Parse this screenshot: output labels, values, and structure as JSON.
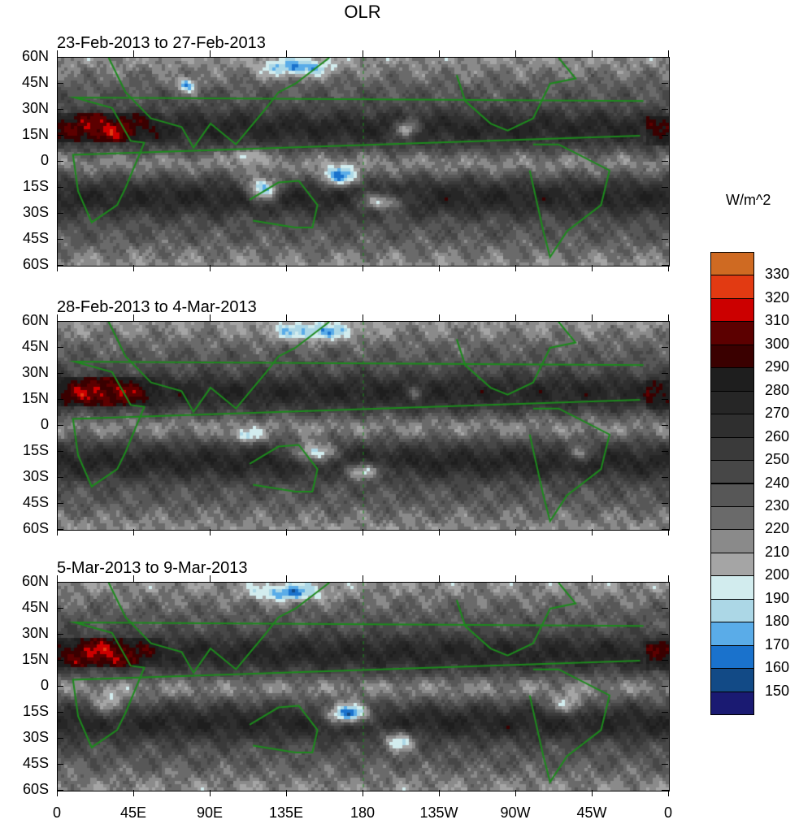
{
  "title": "OLR",
  "panels": [
    {
      "label": "23-Feb-2013 to 27-Feb-2013"
    },
    {
      "label": "28-Feb-2013 to 4-Mar-2013"
    },
    {
      "label": "5-Mar-2013 to 9-Mar-2013"
    }
  ],
  "lat_ticks": [
    "60N",
    "45N",
    "30N",
    "15N",
    "0",
    "15S",
    "30S",
    "45S",
    "60S"
  ],
  "lon_ticks": [
    "0",
    "45E",
    "90E",
    "135E",
    "180",
    "135W",
    "90W",
    "45W",
    "0"
  ],
  "colorbar": {
    "units": "W/m^2",
    "labels": [
      "330",
      "320",
      "310",
      "300",
      "290",
      "280",
      "270",
      "260",
      "250",
      "240",
      "230",
      "220",
      "210",
      "200",
      "190",
      "180",
      "170",
      "160",
      "150"
    ],
    "colors": [
      "#cf6a22",
      "#e23a12",
      "#cc0000",
      "#5c0000",
      "#3a0000",
      "#1e1e1e",
      "#262626",
      "#2f2f2f",
      "#3a3a3a",
      "#474747",
      "#575757",
      "#6a6a6a",
      "#8a8a8a",
      "#a5a5a5",
      "#d2ecee",
      "#acd7e6",
      "#5aace8",
      "#1a72cc",
      "#124a86",
      "#1a1a72"
    ]
  }
}
